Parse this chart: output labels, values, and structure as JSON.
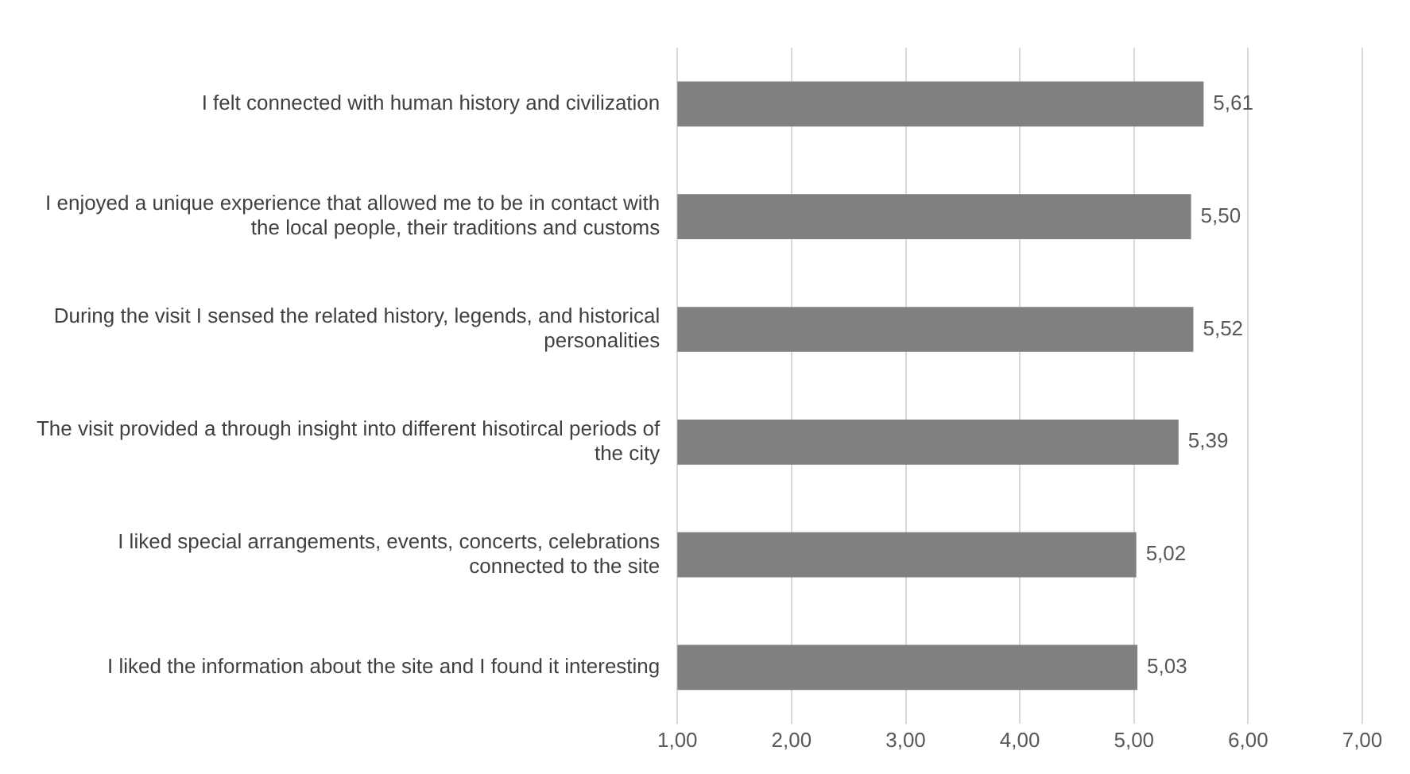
{
  "chart_data": {
    "type": "bar",
    "orientation": "horizontal",
    "categories": [
      "I felt connected with human history and civilization",
      "I enjoyed a unique experience that allowed me to be in contact with the local people, their traditions and customs",
      "During the visit I sensed the related history, legends, and historical personalities",
      "The visit provided a through insight into different hisotircal periods of the city",
      "I liked special arrangements, events, concerts, celebrations connected to the site",
      "I liked the information about the site and I found it interesting"
    ],
    "values": [
      5.61,
      5.5,
      5.52,
      5.39,
      5.02,
      5.03
    ],
    "value_labels": [
      "5,61",
      "5,50",
      "5,52",
      "5,39",
      "5,02",
      "5,03"
    ],
    "color": "#808080",
    "xlim": [
      1,
      7
    ],
    "xticks": [
      {
        "value": 1,
        "label": "1,00"
      },
      {
        "value": 2,
        "label": "2,00"
      },
      {
        "value": 3,
        "label": "3,00"
      },
      {
        "value": 4,
        "label": "4,00"
      },
      {
        "value": 5,
        "label": "5,00"
      },
      {
        "value": 6,
        "label": "6,00"
      },
      {
        "value": 7,
        "label": "7,00"
      }
    ],
    "grid": "x"
  }
}
